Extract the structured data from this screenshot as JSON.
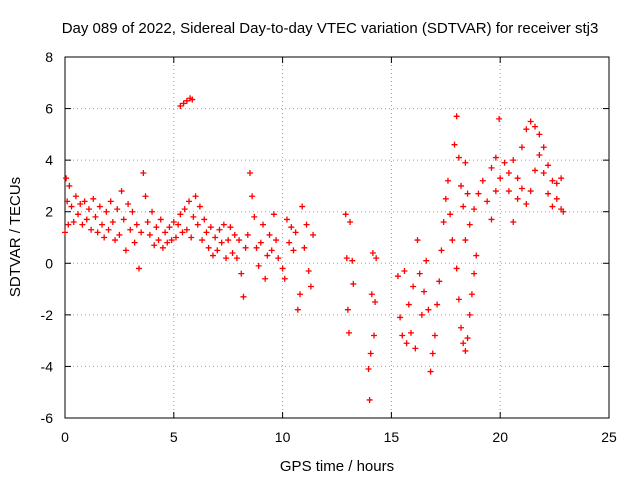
{
  "chart_data": {
    "type": "scatter",
    "title": "Day 089 of 2022, Sidereal Day-to-day VTEC variation (SDTVAR) for receiver stj3",
    "xlabel": "GPS time / hours",
    "ylabel": "SDTVAR / TECUs",
    "xlim": [
      0,
      25
    ],
    "ylim": [
      -6,
      8
    ],
    "xticks": [
      "0",
      "5",
      "10",
      "15",
      "20",
      "25"
    ],
    "yticks": [
      "-6",
      "-4",
      "-2",
      "0",
      "2",
      "4",
      "6",
      "8"
    ],
    "grid": true,
    "marker": "+",
    "series_color": "#ff0000",
    "series": [
      {
        "name": "stj3",
        "points": [
          [
            0.0,
            1.2
          ],
          [
            0.05,
            3.3
          ],
          [
            0.1,
            2.4
          ],
          [
            0.15,
            1.5
          ],
          [
            0.2,
            3.0
          ],
          [
            0.3,
            2.2
          ],
          [
            0.4,
            1.6
          ],
          [
            0.5,
            2.6
          ],
          [
            0.6,
            1.9
          ],
          [
            0.7,
            2.3
          ],
          [
            0.8,
            1.5
          ],
          [
            0.9,
            2.4
          ],
          [
            1.0,
            1.7
          ],
          [
            1.1,
            2.1
          ],
          [
            1.2,
            1.3
          ],
          [
            1.3,
            2.5
          ],
          [
            1.4,
            1.8
          ],
          [
            1.5,
            1.2
          ],
          [
            1.6,
            2.2
          ],
          [
            1.7,
            1.5
          ],
          [
            1.8,
            1.0
          ],
          [
            1.9,
            2.0
          ],
          [
            2.0,
            1.3
          ],
          [
            2.1,
            2.4
          ],
          [
            2.2,
            1.6
          ],
          [
            2.3,
            0.9
          ],
          [
            2.4,
            2.1
          ],
          [
            2.5,
            1.1
          ],
          [
            2.6,
            2.8
          ],
          [
            2.7,
            1.7
          ],
          [
            2.8,
            0.5
          ],
          [
            2.9,
            2.3
          ],
          [
            3.0,
            1.3
          ],
          [
            3.1,
            2.0
          ],
          [
            3.2,
            0.8
          ],
          [
            3.3,
            1.5
          ],
          [
            3.4,
            -0.2
          ],
          [
            3.5,
            1.2
          ],
          [
            3.6,
            3.5
          ],
          [
            3.7,
            2.6
          ],
          [
            3.8,
            1.6
          ],
          [
            3.9,
            1.1
          ],
          [
            4.0,
            2.0
          ],
          [
            4.1,
            0.7
          ],
          [
            4.2,
            1.4
          ],
          [
            4.3,
            0.9
          ],
          [
            4.4,
            1.7
          ],
          [
            4.5,
            0.6
          ],
          [
            4.6,
            1.2
          ],
          [
            4.7,
            0.8
          ],
          [
            4.8,
            1.4
          ],
          [
            4.9,
            0.9
          ],
          [
            5.0,
            1.6
          ],
          [
            5.1,
            1.0
          ],
          [
            5.2,
            1.5
          ],
          [
            5.3,
            1.9
          ],
          [
            5.4,
            1.2
          ],
          [
            5.5,
            2.1
          ],
          [
            5.3,
            6.1
          ],
          [
            5.45,
            6.2
          ],
          [
            5.6,
            6.3
          ],
          [
            5.75,
            6.4
          ],
          [
            5.85,
            6.35
          ],
          [
            5.6,
            1.3
          ],
          [
            5.7,
            2.4
          ],
          [
            5.8,
            1.0
          ],
          [
            5.9,
            1.8
          ],
          [
            6.0,
            2.6
          ],
          [
            6.1,
            1.5
          ],
          [
            6.2,
            2.2
          ],
          [
            6.3,
            0.9
          ],
          [
            6.4,
            1.7
          ],
          [
            6.5,
            1.2
          ],
          [
            6.6,
            0.6
          ],
          [
            6.7,
            1.4
          ],
          [
            6.8,
            0.3
          ],
          [
            6.9,
            1.0
          ],
          [
            7.0,
            0.5
          ],
          [
            7.1,
            1.3
          ],
          [
            7.2,
            0.8
          ],
          [
            7.3,
            1.5
          ],
          [
            7.4,
            0.2
          ],
          [
            7.5,
            0.9
          ],
          [
            7.6,
            1.4
          ],
          [
            7.7,
            0.4
          ],
          [
            7.8,
            1.1
          ],
          [
            7.9,
            0.2
          ],
          [
            8.0,
            0.9
          ],
          [
            8.1,
            -0.4
          ],
          [
            8.2,
            -1.3
          ],
          [
            8.3,
            0.6
          ],
          [
            8.4,
            1.1
          ],
          [
            8.5,
            3.5
          ],
          [
            8.6,
            2.6
          ],
          [
            8.7,
            1.8
          ],
          [
            8.8,
            0.6
          ],
          [
            8.9,
            -0.1
          ],
          [
            9.0,
            0.8
          ],
          [
            9.1,
            1.5
          ],
          [
            9.2,
            -0.6
          ],
          [
            9.3,
            0.3
          ],
          [
            9.4,
            1.1
          ],
          [
            9.5,
            0.5
          ],
          [
            9.6,
            1.9
          ],
          [
            9.7,
            0.9
          ],
          [
            9.8,
            0.2
          ],
          [
            10.0,
            -0.2
          ],
          [
            10.1,
            -0.6
          ],
          [
            10.2,
            1.7
          ],
          [
            10.3,
            0.8
          ],
          [
            10.4,
            1.4
          ],
          [
            10.5,
            0.5
          ],
          [
            10.6,
            1.2
          ],
          [
            10.7,
            -1.8
          ],
          [
            10.8,
            -1.2
          ],
          [
            10.9,
            2.2
          ],
          [
            11.0,
            0.6
          ],
          [
            11.1,
            1.5
          ],
          [
            11.2,
            -0.3
          ],
          [
            11.3,
            -0.9
          ],
          [
            11.4,
            1.1
          ],
          [
            12.9,
            1.9
          ],
          [
            12.95,
            0.2
          ],
          [
            13.0,
            -1.8
          ],
          [
            13.05,
            -2.7
          ],
          [
            13.1,
            1.6
          ],
          [
            13.2,
            0.1
          ],
          [
            13.25,
            -0.8
          ],
          [
            13.95,
            -4.1
          ],
          [
            14.0,
            -5.3
          ],
          [
            14.05,
            -3.5
          ],
          [
            14.1,
            -1.2
          ],
          [
            14.15,
            0.4
          ],
          [
            14.2,
            -2.8
          ],
          [
            14.25,
            -1.5
          ],
          [
            14.3,
            0.2
          ],
          [
            15.3,
            -0.5
          ],
          [
            15.4,
            -2.1
          ],
          [
            15.5,
            -2.8
          ],
          [
            15.6,
            -0.3
          ],
          [
            15.7,
            -3.1
          ],
          [
            15.8,
            -1.6
          ],
          [
            15.9,
            -2.7
          ],
          [
            16.0,
            -0.9
          ],
          [
            16.1,
            -3.3
          ],
          [
            16.2,
            0.9
          ],
          [
            16.3,
            -0.4
          ],
          [
            16.4,
            -2.0
          ],
          [
            16.5,
            -1.1
          ],
          [
            16.6,
            0.1
          ],
          [
            16.7,
            -1.8
          ],
          [
            16.8,
            -4.2
          ],
          [
            16.9,
            -3.5
          ],
          [
            17.0,
            -2.8
          ],
          [
            17.1,
            -1.6
          ],
          [
            17.2,
            -0.7
          ],
          [
            17.3,
            0.5
          ],
          [
            17.4,
            1.6
          ],
          [
            17.5,
            2.5
          ],
          [
            17.6,
            3.2
          ],
          [
            17.7,
            1.9
          ],
          [
            17.8,
            0.9
          ],
          [
            17.9,
            4.6
          ],
          [
            18.0,
            5.7
          ],
          [
            18.1,
            4.1
          ],
          [
            18.2,
            3.0
          ],
          [
            18.3,
            2.2
          ],
          [
            18.4,
            3.9
          ],
          [
            18.5,
            2.7
          ],
          [
            18.0,
            -0.2
          ],
          [
            18.1,
            -1.4
          ],
          [
            18.2,
            -2.5
          ],
          [
            18.3,
            -3.1
          ],
          [
            18.4,
            -3.4
          ],
          [
            18.5,
            -2.9
          ],
          [
            18.6,
            -2.0
          ],
          [
            18.7,
            -1.2
          ],
          [
            18.8,
            -0.4
          ],
          [
            18.9,
            0.3
          ],
          [
            18.4,
            0.9
          ],
          [
            18.6,
            1.5
          ],
          [
            18.8,
            2.1
          ],
          [
            19.0,
            2.7
          ],
          [
            19.2,
            3.2
          ],
          [
            19.4,
            2.4
          ],
          [
            19.6,
            1.7
          ],
          [
            19.8,
            2.8
          ],
          [
            19.95,
            5.6
          ],
          [
            19.6,
            3.7
          ],
          [
            19.8,
            4.1
          ],
          [
            20.0,
            3.3
          ],
          [
            20.2,
            3.9
          ],
          [
            20.4,
            2.8
          ],
          [
            20.6,
            1.6
          ],
          [
            20.8,
            2.5
          ],
          [
            21.0,
            4.5
          ],
          [
            21.2,
            5.2
          ],
          [
            21.4,
            5.5
          ],
          [
            21.6,
            5.3
          ],
          [
            21.8,
            5.0
          ],
          [
            22.0,
            4.5
          ],
          [
            22.2,
            3.8
          ],
          [
            22.4,
            3.2
          ],
          [
            22.6,
            2.5
          ],
          [
            22.8,
            2.1
          ],
          [
            20.4,
            3.5
          ],
          [
            20.6,
            4.0
          ],
          [
            20.8,
            3.3
          ],
          [
            21.0,
            2.9
          ],
          [
            21.2,
            2.3
          ],
          [
            21.4,
            2.8
          ],
          [
            21.6,
            3.6
          ],
          [
            21.8,
            4.2
          ],
          [
            22.0,
            3.5
          ],
          [
            22.2,
            2.7
          ],
          [
            22.4,
            2.2
          ],
          [
            22.6,
            3.1
          ],
          [
            22.8,
            3.3
          ],
          [
            22.9,
            2.0
          ]
        ]
      }
    ]
  }
}
